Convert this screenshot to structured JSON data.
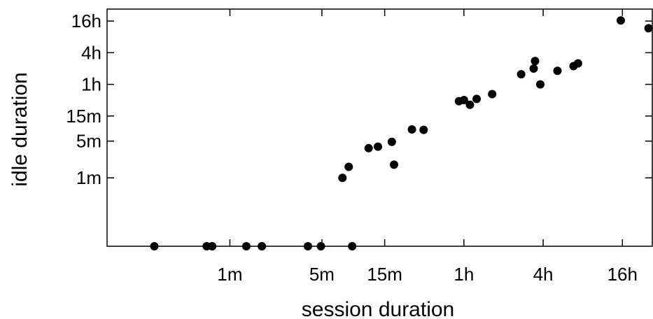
{
  "chart_data": {
    "type": "scatter",
    "xlabel": "session duration",
    "ylabel": "idle duration",
    "x_scale": "log",
    "y_scale": "log",
    "xlim": [
      "7s",
      "27h"
    ],
    "ylim": [
      "3s",
      "27h"
    ],
    "x_ticks": [
      {
        "label": "1m",
        "seconds": 60
      },
      {
        "label": "5m",
        "seconds": 300
      },
      {
        "label": "15m",
        "seconds": 900
      },
      {
        "label": "1h",
        "seconds": 3600
      },
      {
        "label": "4h",
        "seconds": 14400
      },
      {
        "label": "16h",
        "seconds": 57600
      }
    ],
    "y_ticks": [
      {
        "label": "1m",
        "seconds": 60
      },
      {
        "label": "5m",
        "seconds": 300
      },
      {
        "label": "15m",
        "seconds": 900
      },
      {
        "label": "1h",
        "seconds": 3600
      },
      {
        "label": "4h",
        "seconds": 14400
      },
      {
        "label": "16h",
        "seconds": 57600
      }
    ],
    "grid": false,
    "legend": "none",
    "marker_color": "#000000",
    "points_note": "x and y are durations in seconds; points at y = 3 lie on the bottom axis",
    "points": [
      {
        "x": 16,
        "y": 3
      },
      {
        "x": 40,
        "y": 3
      },
      {
        "x": 44,
        "y": 3
      },
      {
        "x": 80,
        "y": 3
      },
      {
        "x": 105,
        "y": 3
      },
      {
        "x": 235,
        "y": 3
      },
      {
        "x": 295,
        "y": 3
      },
      {
        "x": 510,
        "y": 3
      },
      {
        "x": 430,
        "y": 60
      },
      {
        "x": 480,
        "y": 97
      },
      {
        "x": 680,
        "y": 220
      },
      {
        "x": 800,
        "y": 235
      },
      {
        "x": 1020,
        "y": 290
      },
      {
        "x": 1060,
        "y": 107
      },
      {
        "x": 1450,
        "y": 500
      },
      {
        "x": 1780,
        "y": 490
      },
      {
        "x": 3300,
        "y": 1720
      },
      {
        "x": 3600,
        "y": 1810
      },
      {
        "x": 4000,
        "y": 1470
      },
      {
        "x": 4500,
        "y": 1900
      },
      {
        "x": 5900,
        "y": 2350
      },
      {
        "x": 9800,
        "y": 5600
      },
      {
        "x": 12200,
        "y": 7200
      },
      {
        "x": 12500,
        "y": 10000
      },
      {
        "x": 13700,
        "y": 3600
      },
      {
        "x": 18500,
        "y": 6500
      },
      {
        "x": 24500,
        "y": 8000
      },
      {
        "x": 26500,
        "y": 9000
      },
      {
        "x": 56000,
        "y": 59000
      },
      {
        "x": 91000,
        "y": 42000
      }
    ]
  }
}
